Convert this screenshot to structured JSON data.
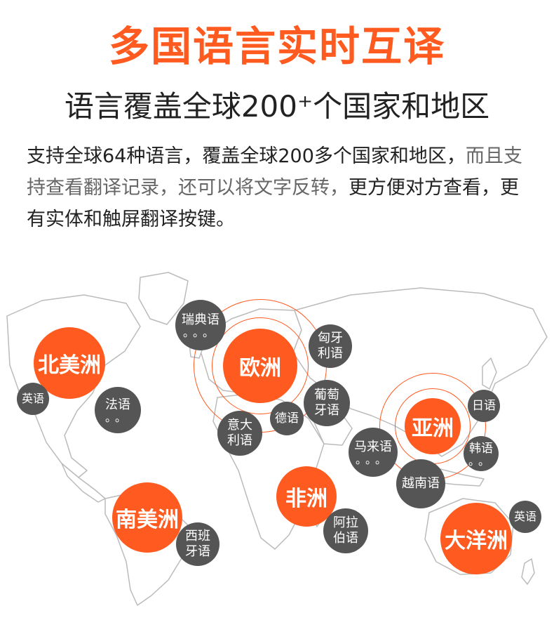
{
  "title": "多国语言实时互译",
  "subtitle": "语言覆盖全球200⁺个国家和地区",
  "description": {
    "part1": "支持全球64种语言，覆盖全球200多个国家和地区，",
    "part2": "而且支持查看翻译记录，",
    "part3": "还可以将文字反转，",
    "part4": "更方便对方查看，更有实体和触屏翻译按键。"
  },
  "colors": {
    "accent": "#ff5a1f",
    "bubble": "#555555",
    "map": "#bbbbbb"
  },
  "regions": {
    "north_america": "北美洲",
    "europe": "欧洲",
    "asia": "亚洲",
    "africa": "非洲",
    "south_america": "南美洲",
    "oceania": "大洋洲"
  },
  "languages": {
    "swedish": {
      "line1": "瑞典语",
      "dots": "。。。"
    },
    "hungarian": {
      "line1": "匈牙",
      "line2": "利语"
    },
    "english_na": {
      "line1": "英语"
    },
    "french": {
      "line1": "法语",
      "dots": "。。"
    },
    "italian": {
      "line1": "意大",
      "line2": "利语"
    },
    "german": {
      "line1": "德语"
    },
    "portuguese": {
      "line1": "葡萄",
      "line2": "牙语"
    },
    "japanese": {
      "line1": "日语"
    },
    "malay": {
      "line1": "马来语",
      "dots": "。。。"
    },
    "korean": {
      "line1": "韩语",
      "dots": "。。"
    },
    "vietnamese": {
      "line1": "越南语"
    },
    "arabic": {
      "line1": "阿拉",
      "line2": "伯语"
    },
    "spanish": {
      "line1": "西班",
      "line2": "牙语"
    },
    "english_oc": {
      "line1": "英语"
    }
  }
}
